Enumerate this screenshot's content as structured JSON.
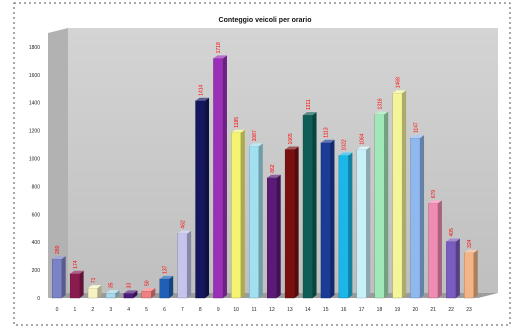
{
  "chart_data": {
    "type": "bar",
    "title": "Conteggio veicoli per orario",
    "xlabel": "",
    "ylabel": "",
    "ylim": [
      0,
      1900
    ],
    "y_ticks": [
      0,
      200,
      400,
      600,
      800,
      1000,
      1200,
      1400,
      1600,
      1800
    ],
    "grid": false,
    "categories": [
      "0",
      "1",
      "2",
      "3",
      "4",
      "5",
      "6",
      "7",
      "8",
      "9",
      "10",
      "11",
      "12",
      "13",
      "14",
      "15",
      "16",
      "17",
      "18",
      "19",
      "20",
      "21",
      "22",
      "23"
    ],
    "values": [
      280,
      174,
      71,
      35,
      33,
      50,
      137,
      462,
      1414,
      1718,
      1185,
      1087,
      862,
      1065,
      1311,
      1113,
      1022,
      1064,
      1316,
      1468,
      1147,
      679,
      405,
      324
    ],
    "bar_colors": [
      "#7b83c6",
      "#8b1b4f",
      "#f6f2c4",
      "#a8d8ea",
      "#4b1a7a",
      "#f08080",
      "#1f5fb8",
      "#c4c4ec",
      "#14175e",
      "#9b30b8",
      "#f4f470",
      "#a0e0f0",
      "#5c1a78",
      "#7a0f10",
      "#0e5e56",
      "#1a3c96",
      "#1ab8e8",
      "#c8f0f8",
      "#a0e8b8",
      "#f4f498",
      "#90b8f0",
      "#f08cb4",
      "#7a5cc0",
      "#f4b488"
    ],
    "label_color": "#ff0000",
    "background_color": "#c7c7c7"
  }
}
